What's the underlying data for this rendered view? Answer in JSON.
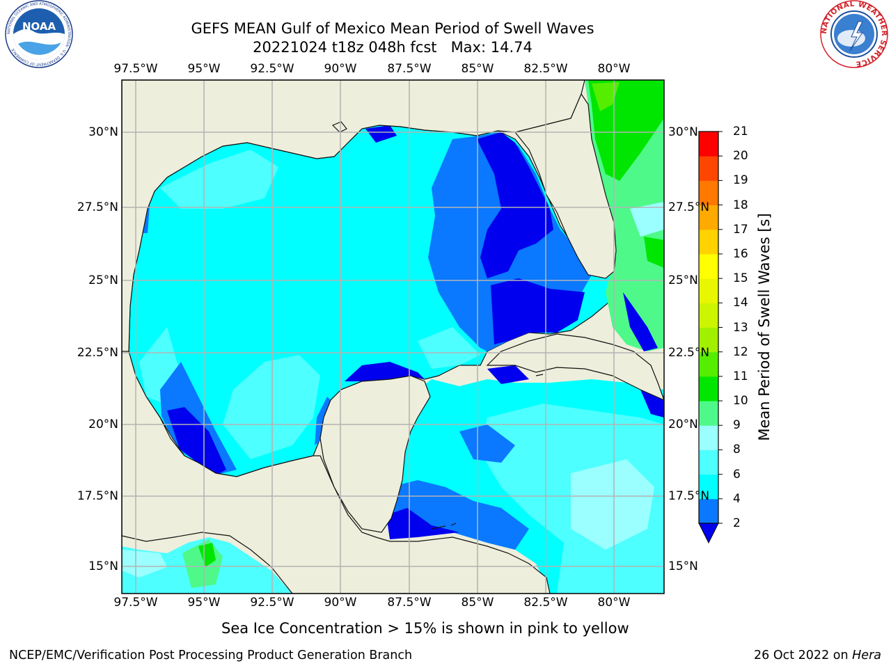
{
  "title": {
    "line1": "GEFS MEAN Gulf of Mexico Mean Period of Swell Waves",
    "line2": "20221024 t18z 048h fcst   Max: 14.74"
  },
  "logos": {
    "left": "noaa-logo",
    "left_text": "NOAA",
    "left_ring": "NATIONAL OCEANIC AND ATMOSPHERIC ADMINISTRATION · U.S. DEPARTMENT OF COMMERCE",
    "right": "national-weather-service-logo",
    "right_ring": "NATIONAL WEATHER SERVICE"
  },
  "map": {
    "projection": "PlateCarree",
    "lon_range": [
      -98,
      -78.3
    ],
    "lat_range": [
      14,
      31.8
    ],
    "lon_ticks": [
      "97.5°W",
      "95°W",
      "92.5°W",
      "90°W",
      "87.5°W",
      "85°W",
      "82.5°W",
      "80°W"
    ],
    "lat_ticks_left": [
      "30°N",
      "27.5°N",
      "25°N",
      "22.5°N",
      "20°N",
      "17.5°N",
      "15°N"
    ],
    "lat_ticks_right": [
      "30°N",
      "27.5°N",
      "25°N",
      "22.5°N",
      "20°N",
      "17.5°N",
      "15°N"
    ],
    "land_color": "#eeeedc",
    "grid": true,
    "grid_color": "#b4b4b4",
    "max_value": 14.74
  },
  "colorbar": {
    "label": "Mean Period of Swell Waves [s]",
    "ticks": [
      "21",
      "20",
      "19",
      "18",
      "17",
      "16",
      "15",
      "14",
      "13",
      "12",
      "11",
      "10",
      "9",
      "8",
      "6",
      "4",
      "2"
    ],
    "extend": "min",
    "levels": [
      {
        "from": 0,
        "to": 2,
        "color": "#0000ee"
      },
      {
        "from": 2,
        "to": 4,
        "color": "#0a78ff"
      },
      {
        "from": 4,
        "to": 6,
        "color": "#00ffff"
      },
      {
        "from": 6,
        "to": 8,
        "color": "#4dffff"
      },
      {
        "from": 8,
        "to": 9,
        "color": "#9bffff"
      },
      {
        "from": 9,
        "to": 10,
        "color": "#4ef98a"
      },
      {
        "from": 10,
        "to": 11,
        "color": "#00e600"
      },
      {
        "from": 11,
        "to": 12,
        "color": "#55ee00"
      },
      {
        "from": 12,
        "to": 13,
        "color": "#a0f000"
      },
      {
        "from": 13,
        "to": 14,
        "color": "#ccf500"
      },
      {
        "from": 14,
        "to": 15,
        "color": "#e8f700"
      },
      {
        "from": 15,
        "to": 16,
        "color": "#ffff00"
      },
      {
        "from": 16,
        "to": 17,
        "color": "#ffd200"
      },
      {
        "from": 17,
        "to": 18,
        "color": "#ffaa00"
      },
      {
        "from": 18,
        "to": 19,
        "color": "#ff7800"
      },
      {
        "from": 19,
        "to": 20,
        "color": "#ff4600"
      },
      {
        "from": 20,
        "to": 21,
        "color": "#ff0000"
      }
    ]
  },
  "note": "Sea Ice Concentration > 15% is shown in pink to yellow",
  "footer": {
    "left": "NCEP/EMC/Verification Post Processing Product Generation Branch",
    "right_date": "26 Oct 2022 on ",
    "right_host": "Hera"
  }
}
